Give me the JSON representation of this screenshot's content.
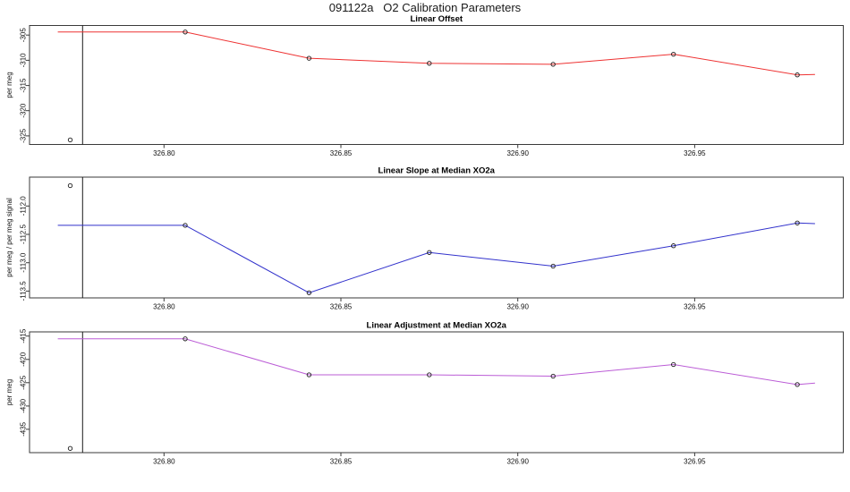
{
  "page_title": "091122a   O2 Calibration Parameters",
  "axes": {
    "x_tick_values": [
      326.8,
      326.85,
      326.9,
      326.95
    ],
    "x_tick_labels": [
      "326.80",
      "326.85",
      "326.90",
      "326.95"
    ],
    "xlim": [
      326.762,
      326.992
    ],
    "event_line_x": 326.777
  },
  "chart_data": [
    {
      "type": "line",
      "title": "Linear Offset",
      "ylabel": "per meg",
      "line_color": "#ee3232",
      "point_style": "open-circle",
      "grid": "off",
      "ylim": [
        -326.7,
        -303.1
      ],
      "ytick_values": [
        -305,
        -310,
        -315,
        -320,
        -325
      ],
      "ytick_labels": [
        "-305",
        "-310",
        "-315",
        "-320",
        "-325"
      ],
      "x": [
        326.806,
        326.841,
        326.875,
        326.91,
        326.944,
        326.979
      ],
      "y": [
        -304.4,
        -309.6,
        -310.6,
        -310.8,
        -308.8,
        -312.9
      ],
      "line_start": {
        "x": 326.77,
        "y": -304.4
      },
      "line_end": {
        "x": 326.984,
        "y": -312.8
      },
      "outlier": {
        "x": 326.7735,
        "y": -325.8
      }
    },
    {
      "type": "line",
      "title": "Linear Slope at Median XO2a",
      "ylabel": "per meg / per meg signal",
      "line_color": "#3232cc",
      "point_style": "open-circle",
      "grid": "off",
      "ylim": [
        -113.62,
        -111.49
      ],
      "ytick_values": [
        -112.0,
        -112.5,
        -113.0,
        -113.5
      ],
      "ytick_labels": [
        "-112.0",
        "-112.5",
        "-113.0",
        "-113.5"
      ],
      "x": [
        326.806,
        326.841,
        326.875,
        326.91,
        326.944,
        326.979
      ],
      "y": [
        -112.34,
        -113.53,
        -112.82,
        -113.06,
        -112.7,
        -112.3
      ],
      "line_start": {
        "x": 326.77,
        "y": -112.34
      },
      "line_end": {
        "x": 326.984,
        "y": -112.31
      },
      "outlier": {
        "x": 326.7735,
        "y": -111.64
      }
    },
    {
      "type": "line",
      "title": "Linear Adjustment at Median XO2a",
      "ylabel": "per meg",
      "line_color": "#bb5cd6",
      "point_style": "open-circle",
      "grid": "off",
      "ylim": [
        -440.0,
        -414.1
      ],
      "ytick_values": [
        -415,
        -420,
        -425,
        -430,
        -435
      ],
      "ytick_labels": [
        "-415",
        "-420",
        "-425",
        "-430",
        "-435"
      ],
      "x": [
        326.806,
        326.841,
        326.875,
        326.91,
        326.944,
        326.979
      ],
      "y": [
        -415.6,
        -423.3,
        -423.3,
        -423.6,
        -421.1,
        -425.4
      ],
      "line_start": {
        "x": 326.77,
        "y": -415.6
      },
      "line_end": {
        "x": 326.984,
        "y": -425.1
      },
      "outlier": {
        "x": 326.7735,
        "y": -439.1
      }
    }
  ]
}
